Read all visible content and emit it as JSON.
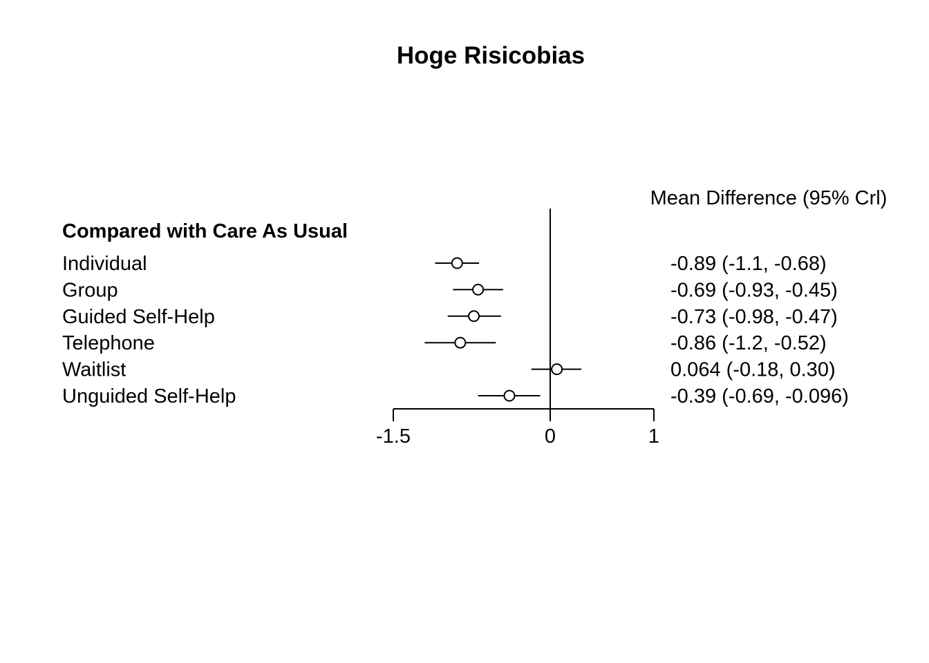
{
  "chart_data": {
    "type": "forest",
    "title": "Hoge Risicobias",
    "group_label": "Compared with Care As Usual",
    "column_header": "Mean Difference (95% Crl)",
    "x_ticks": [
      -1.5,
      0,
      1
    ],
    "x_tick_labels": [
      "-1.5",
      "0",
      "1"
    ],
    "xlim": [
      -1.5,
      1
    ],
    "reference_line": 0,
    "rows": [
      {
        "name": "Individual",
        "mean": -0.89,
        "lower": -1.1,
        "upper": -0.68,
        "label": "-0.89 (-1.1, -0.68)"
      },
      {
        "name": "Group",
        "mean": -0.69,
        "lower": -0.93,
        "upper": -0.45,
        "label": "-0.69 (-0.93, -0.45)"
      },
      {
        "name": "Guided Self-Help",
        "mean": -0.73,
        "lower": -0.98,
        "upper": -0.47,
        "label": "-0.73 (-0.98, -0.47)"
      },
      {
        "name": "Telephone",
        "mean": -0.86,
        "lower": -1.2,
        "upper": -0.52,
        "label": "-0.86 (-1.2, -0.52)"
      },
      {
        "name": "Waitlist",
        "mean": 0.064,
        "lower": -0.18,
        "upper": 0.3,
        "label": "0.064 (-0.18, 0.30)"
      },
      {
        "name": "Unguided Self-Help",
        "mean": -0.39,
        "lower": -0.69,
        "upper": -0.096,
        "label": "-0.39 (-0.69, -0.096)"
      }
    ]
  }
}
